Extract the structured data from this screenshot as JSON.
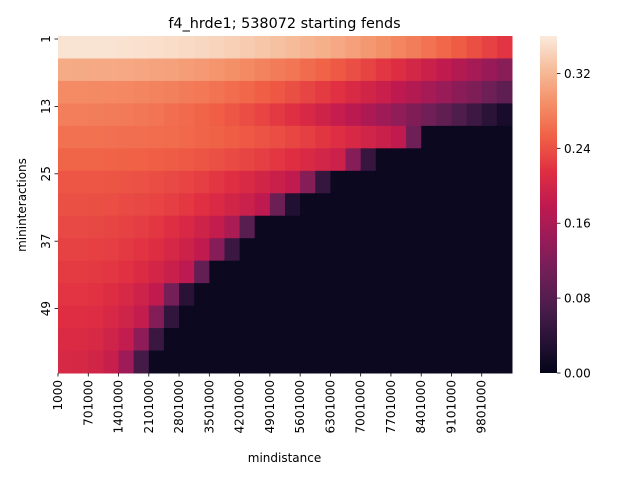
{
  "chart_data": {
    "type": "heatmap",
    "title": "f4_hrde1; 538072 starting fends",
    "xlabel": "mindistance",
    "ylabel": "mininteractions",
    "x_tick_labels": [
      "1000",
      "701000",
      "1401000",
      "2101000",
      "2801000",
      "3501000",
      "4201000",
      "4901000",
      "5601000",
      "6301000",
      "7001000",
      "7701000",
      "8401000",
      "9101000",
      "9801000"
    ],
    "y_tick_labels": [
      "1",
      "13",
      "25",
      "37",
      "49"
    ],
    "colorbar": {
      "min": 0.0,
      "max": 0.36,
      "colormap": "rocket",
      "tick_labels": [
        "0.00",
        "0.08",
        "0.16",
        "0.24",
        "0.32"
      ],
      "tick_values": [
        0.0,
        0.08,
        0.16,
        0.24,
        0.32
      ]
    },
    "grid": false,
    "rows": [
      {
        "mininteractions": 1,
        "base": 0.355,
        "edge": 0.34,
        "end": 0.22,
        "cut": null
      },
      {
        "mininteractions": 5,
        "base": 0.31,
        "edge": 0.28,
        "end": 0.13,
        "cut": null
      },
      {
        "mininteractions": 9,
        "base": 0.285,
        "edge": 0.24,
        "end": 0.09,
        "cut": null
      },
      {
        "mininteractions": 13,
        "base": 0.275,
        "edge": 0.22,
        "end": 0.02,
        "cut": null
      },
      {
        "mininteractions": 17,
        "base": 0.265,
        "edge": 0.16,
        "end": 0.04,
        "cut": 8400000
      },
      {
        "mininteractions": 21,
        "base": 0.255,
        "edge": 0.17,
        "end": 0.03,
        "cut": 7100000
      },
      {
        "mininteractions": 25,
        "base": 0.245,
        "edge": 0.15,
        "end": 0.02,
        "cut": 6100000
      },
      {
        "mininteractions": 29,
        "base": 0.24,
        "edge": 0.15,
        "end": 0.02,
        "cut": 5300000
      },
      {
        "mininteractions": 33,
        "base": 0.235,
        "edge": 0.14,
        "end": 0.03,
        "cut": 4500000
      },
      {
        "mininteractions": 37,
        "base": 0.23,
        "edge": 0.14,
        "end": 0.03,
        "cut": 4000000
      },
      {
        "mininteractions": 41,
        "base": 0.225,
        "edge": 0.14,
        "end": 0.03,
        "cut": 3500000
      },
      {
        "mininteractions": 45,
        "base": 0.22,
        "edge": 0.13,
        "end": 0.02,
        "cut": 2900000
      },
      {
        "mininteractions": 49,
        "base": 0.215,
        "edge": 0.13,
        "end": 0.02,
        "cut": 2600000
      },
      {
        "mininteractions": 53,
        "base": 0.21,
        "edge": 0.12,
        "end": 0.02,
        "cut": 2300000
      },
      {
        "mininteractions": 57,
        "base": 0.205,
        "edge": 0.12,
        "end": 0.02,
        "cut": 2000000
      }
    ],
    "columns": {
      "count": 30,
      "first": 1000,
      "step": 350000
    }
  }
}
